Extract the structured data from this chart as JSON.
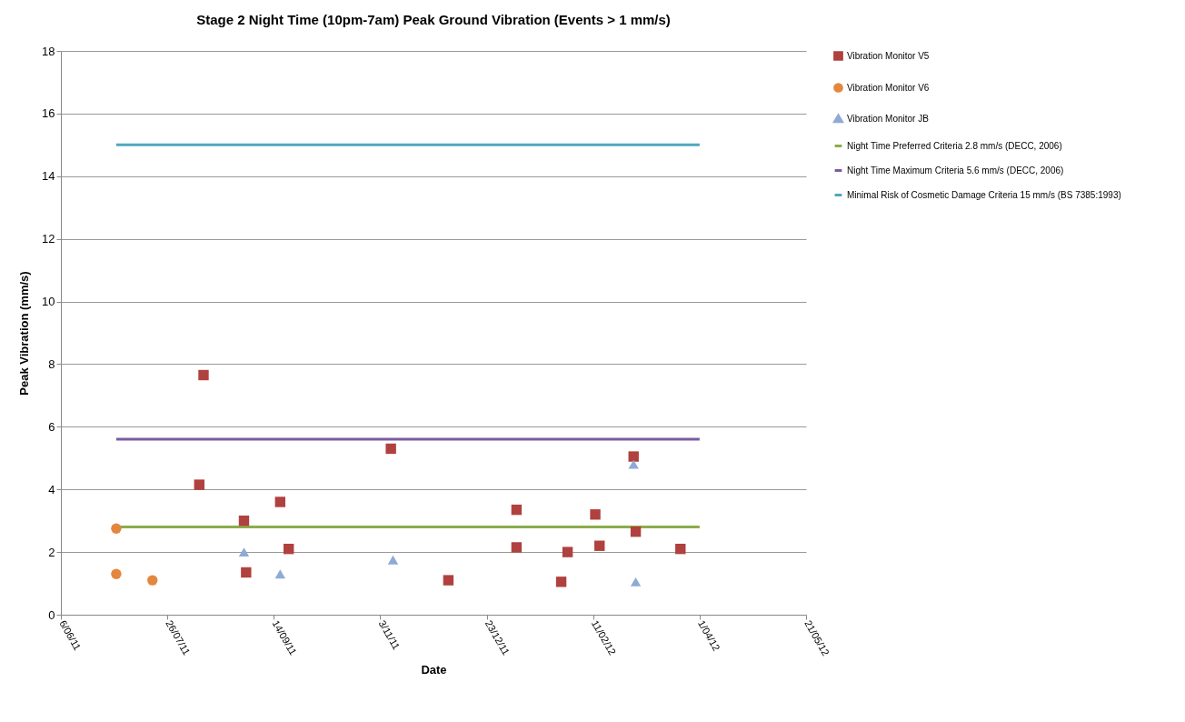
{
  "chart_data": {
    "type": "scatter",
    "title": "Stage 2 Night Time (10pm-7am) Peak Ground Vibration (Events > 1 mm/s)",
    "xlabel": "Date",
    "ylabel": "Peak Vibration (mm/s)",
    "xlim": [
      "2011-06-06",
      "2012-05-21"
    ],
    "xticks": [
      {
        "value": "2011-06-06",
        "label": "6/06/11"
      },
      {
        "value": "2011-07-26",
        "label": "26/07/11"
      },
      {
        "value": "2011-09-14",
        "label": "14/09/11"
      },
      {
        "value": "2011-11-03",
        "label": "3/11/11"
      },
      {
        "value": "2011-12-23",
        "label": "23/12/11"
      },
      {
        "value": "2012-02-11",
        "label": "11/02/12"
      },
      {
        "value": "2012-04-01",
        "label": "1/04/12"
      },
      {
        "value": "2012-05-21",
        "label": "21/05/12"
      }
    ],
    "ylim": [
      0,
      18
    ],
    "yticks": [
      0,
      2,
      4,
      6,
      8,
      10,
      12,
      14,
      16,
      18
    ],
    "grid": "y",
    "legend": "right",
    "series": [
      {
        "name": "Vibration Monitor V5",
        "color": "#b0413e",
        "marker": "square",
        "x": [
          "2011-08-12",
          "2011-08-10",
          "2011-08-31",
          "2011-09-01",
          "2011-09-17",
          "2011-09-21",
          "2011-11-08",
          "2011-12-05",
          "2012-01-06",
          "2012-01-06",
          "2012-01-27",
          "2012-01-30",
          "2012-02-12",
          "2012-02-14",
          "2012-03-01",
          "2012-03-02",
          "2012-03-23"
        ],
        "values": [
          7.65,
          4.15,
          3.0,
          1.35,
          3.6,
          2.1,
          5.3,
          1.1,
          3.35,
          2.15,
          1.05,
          2.0,
          3.2,
          2.2,
          5.05,
          2.65,
          2.1
        ]
      },
      {
        "name": "Vibration Monitor V6",
        "color": "#e3873f",
        "marker": "circle",
        "x": [
          "2011-07-02",
          "2011-07-02",
          "2011-07-19"
        ],
        "values": [
          2.75,
          1.3,
          1.1
        ]
      },
      {
        "name": "Vibration Monitor JB",
        "color": "#8eaad6",
        "marker": "triangle",
        "x": [
          "2011-08-31",
          "2011-09-17",
          "2011-11-09",
          "2012-03-01",
          "2012-03-02"
        ],
        "values": [
          2.0,
          1.3,
          1.75,
          4.8,
          1.05
        ]
      },
      {
        "name": "Night Time Preferred Criteria 2.8 mm/s (DECC, 2006)",
        "type": "line",
        "color": "#8bad4b",
        "x": [
          "2011-07-02",
          "2012-04-01"
        ],
        "values": [
          2.8,
          2.8
        ]
      },
      {
        "name": "Night Time Maximum Criteria 5.6 mm/s (DECC, 2006)",
        "type": "line",
        "color": "#7a5ca0",
        "x": [
          "2011-07-02",
          "2012-04-01"
        ],
        "values": [
          5.6,
          5.6
        ]
      },
      {
        "name": "Minimal Risk of Cosmetic Damage Criteria 15 mm/s (BS 7385:1993)",
        "type": "line",
        "color": "#4fa6c2",
        "x": [
          "2011-07-02",
          "2012-04-01"
        ],
        "values": [
          15,
          15
        ]
      }
    ]
  }
}
